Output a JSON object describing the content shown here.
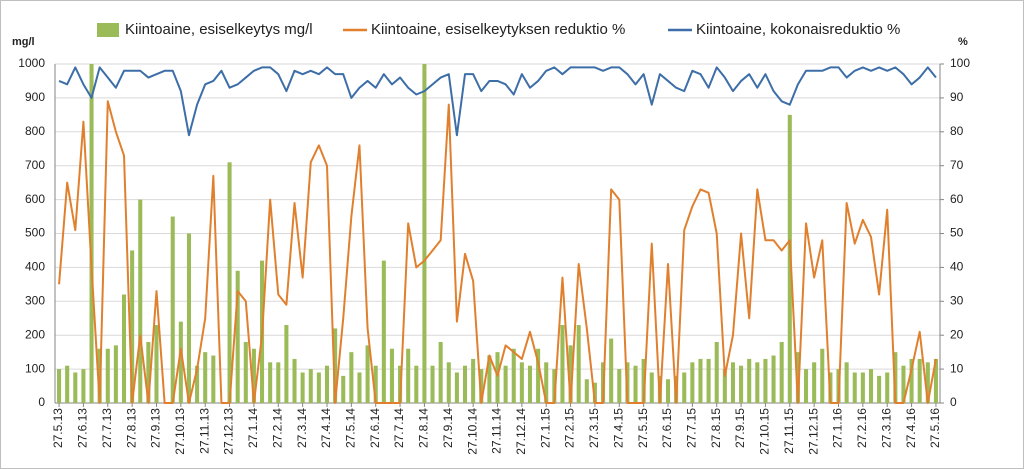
{
  "chart_data": {
    "type": "bar",
    "y_label": "mg/l",
    "y2_label": "%",
    "ylim": [
      0,
      1000
    ],
    "yticks": [
      0,
      100,
      200,
      300,
      400,
      500,
      600,
      700,
      800,
      900,
      1000
    ],
    "y2lim": [
      0,
      100
    ],
    "y2ticks": [
      0,
      10,
      20,
      30,
      40,
      50,
      60,
      70,
      80,
      90,
      100
    ],
    "grid": true,
    "legend": "top",
    "categories": [
      "27.5.13",
      null,
      null,
      "27.6.13",
      null,
      null,
      "27.7.13",
      null,
      null,
      "27.8.13",
      null,
      null,
      "27.9.13",
      null,
      null,
      "27.10.13",
      null,
      null,
      "27.11.13",
      null,
      null,
      "27.12.13",
      null,
      null,
      "27.1.14",
      null,
      null,
      "27.2.14",
      null,
      null,
      "27.3.14",
      null,
      null,
      "27.4.14",
      null,
      null,
      "27.5.14",
      null,
      null,
      "27.6.14",
      null,
      null,
      "27.7.14",
      null,
      null,
      "27.8.14",
      null,
      null,
      "27.9.14",
      null,
      null,
      "27.10.14",
      null,
      null,
      "27.11.14",
      null,
      null,
      "27.12.14",
      null,
      null,
      "27.1.15",
      null,
      null,
      "27.2.15",
      null,
      null,
      "27.3.15",
      null,
      null,
      "27.4.15",
      null,
      null,
      "27.5.15",
      null,
      null,
      "27.6.15",
      null,
      null,
      "27.7.15",
      null,
      null,
      "27.8.15",
      null,
      null,
      "27.9.15",
      null,
      null,
      "27.10.15",
      null,
      null,
      "27.11.15",
      null,
      null,
      "27.12.15",
      null,
      null,
      "27.1.16",
      null,
      null,
      "27.2.16",
      null,
      null,
      "27.3.16",
      null,
      null,
      "27.4.16",
      null,
      null,
      "27.5.16"
    ],
    "series": [
      {
        "name": "Kiintoaine, esiselkeytys mg/l",
        "type": "bar",
        "axis": "y",
        "color": "#9bbb59",
        "values": [
          100,
          110,
          90,
          100,
          1000,
          160,
          160,
          170,
          320,
          450,
          600,
          180,
          230,
          0,
          550,
          240,
          500,
          110,
          150,
          140,
          0,
          710,
          390,
          180,
          160,
          420,
          120,
          120,
          230,
          130,
          90,
          100,
          90,
          110,
          220,
          80,
          150,
          90,
          170,
          110,
          420,
          160,
          110,
          160,
          110,
          1000,
          110,
          180,
          120,
          90,
          110,
          130,
          100,
          140,
          150,
          110,
          160,
          120,
          110,
          160,
          120,
          100,
          230,
          170,
          230,
          70,
          60,
          120,
          190,
          100,
          120,
          110,
          130,
          90,
          80,
          70,
          80,
          90,
          120,
          130,
          130,
          180,
          100,
          120,
          110,
          130,
          120,
          130,
          140,
          180,
          850,
          150,
          100,
          120,
          160,
          90,
          100,
          120,
          90,
          90,
          100,
          80,
          90,
          150,
          110,
          130,
          130,
          120,
          130
        ]
      },
      {
        "name": "Kiintoaine, esiselkeytyksen reduktio %",
        "type": "line",
        "axis": "y2",
        "color": "#e0802e",
        "values": [
          35,
          65,
          51,
          83,
          40,
          0,
          89,
          80,
          73,
          0,
          20,
          0,
          33,
          0,
          0,
          16,
          0,
          10,
          25,
          67,
          0,
          0,
          33,
          30,
          0,
          20,
          60,
          32,
          29,
          59,
          37,
          71,
          76,
          70,
          0,
          25,
          55,
          76,
          22,
          0,
          0,
          0,
          0,
          53,
          40,
          42,
          45,
          48,
          88,
          24,
          44,
          36,
          0,
          14,
          8,
          17,
          15,
          13,
          21,
          12,
          0,
          0,
          37,
          0,
          41,
          22,
          0,
          0,
          63,
          60,
          0,
          0,
          0,
          47,
          0,
          41,
          0,
          51,
          58,
          63,
          62,
          50,
          8,
          20,
          50,
          25,
          63,
          48,
          48,
          45,
          48,
          0,
          53,
          37,
          48,
          0,
          0,
          59,
          47,
          54,
          49,
          32,
          57,
          0,
          0,
          10,
          21,
          0,
          13
        ]
      },
      {
        "name": "Kiintoaine, kokonaisreduktio %",
        "type": "line",
        "axis": "y2",
        "color": "#3d6ea8",
        "values": [
          95,
          94,
          99,
          94,
          90,
          99,
          96,
          93,
          98,
          98,
          98,
          96,
          97,
          98,
          98,
          92,
          79,
          88,
          94,
          95,
          98,
          93,
          94,
          96,
          98,
          99,
          99,
          97,
          92,
          98,
          97,
          98,
          97,
          99,
          97,
          97,
          90,
          93,
          95,
          93,
          97,
          94,
          96,
          93,
          91,
          92,
          94,
          96,
          97,
          79,
          97,
          97,
          92,
          95,
          95,
          94,
          91,
          97,
          93,
          95,
          98,
          99,
          97,
          99,
          99,
          99,
          99,
          98,
          99,
          99,
          97,
          94,
          97,
          88,
          97,
          95,
          93,
          92,
          98,
          97,
          93,
          99,
          96,
          92,
          95,
          97,
          93,
          97,
          92,
          89,
          88,
          94,
          98,
          98,
          98,
          99,
          99,
          96,
          98,
          99,
          98,
          99,
          98,
          99,
          97,
          94,
          96,
          99,
          96
        ]
      }
    ]
  }
}
